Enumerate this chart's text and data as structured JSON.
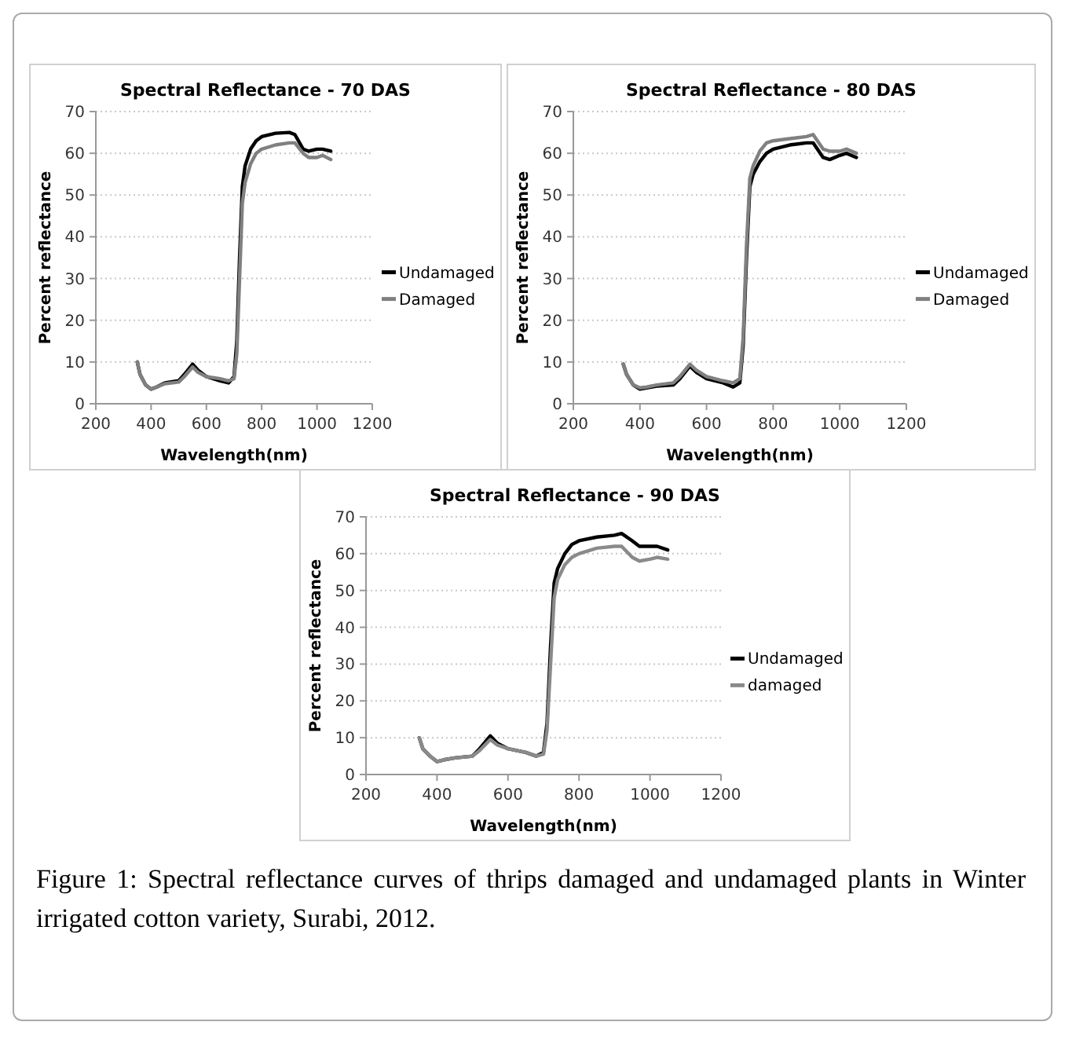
{
  "chart_data": [
    {
      "type": "line",
      "title": "Spectral Reflectance - 70 DAS",
      "xlabel": "Wavelength(nm)",
      "ylabel": "Percent reflectance",
      "x": [
        350,
        360,
        380,
        400,
        420,
        450,
        500,
        520,
        550,
        570,
        600,
        650,
        680,
        700,
        710,
        720,
        730,
        740,
        760,
        780,
        800,
        850,
        900,
        920,
        950,
        970,
        1000,
        1020,
        1050
      ],
      "xlim": [
        200,
        1200
      ],
      "xticks": [
        200,
        400,
        600,
        800,
        1000,
        1200
      ],
      "ylim": [
        0,
        70
      ],
      "yticks": [
        0,
        10,
        20,
        30,
        40,
        50,
        60,
        70
      ],
      "grid": "y",
      "legend": "right",
      "series": [
        {
          "name": "Undamaged",
          "color": "#000000",
          "values": [
            10,
            7,
            4.5,
            3.5,
            4,
            5,
            5.5,
            7,
            9.5,
            8,
            6.5,
            5.5,
            5,
            6.5,
            15,
            35,
            52,
            57,
            61,
            63,
            64,
            64.8,
            65,
            64.5,
            61,
            60.5,
            61,
            61,
            60.5
          ]
        },
        {
          "name": "Damaged",
          "color": "#808080",
          "values": [
            10,
            7,
            4.5,
            3.5,
            4,
            4.8,
            5.2,
            6.5,
            8.8,
            7.5,
            6.5,
            6,
            5.5,
            6,
            12,
            30,
            48,
            53,
            57.5,
            60,
            61,
            62,
            62.5,
            62.5,
            60,
            59,
            59,
            59.5,
            58.5
          ]
        }
      ]
    },
    {
      "type": "line",
      "title": "Spectral Reflectance - 80 DAS",
      "xlabel": "Wavelength(nm)",
      "ylabel": "Percent reflectance",
      "x": [
        350,
        360,
        380,
        400,
        420,
        450,
        500,
        520,
        550,
        570,
        600,
        650,
        680,
        700,
        710,
        720,
        730,
        740,
        760,
        780,
        800,
        850,
        900,
        920,
        950,
        970,
        1000,
        1020,
        1050
      ],
      "xlim": [
        200,
        1200
      ],
      "xticks": [
        200,
        400,
        600,
        800,
        1000,
        1200
      ],
      "ylim": [
        0,
        70
      ],
      "yticks": [
        0,
        10,
        20,
        30,
        40,
        50,
        60,
        70
      ],
      "grid": "y",
      "legend": "right",
      "series": [
        {
          "name": "Undamaged",
          "color": "#000000",
          "values": [
            9.5,
            7,
            4.5,
            3.5,
            3.8,
            4.2,
            4.5,
            6,
            9,
            7.5,
            6,
            5,
            4,
            5,
            14,
            35,
            52,
            55,
            58,
            60,
            61,
            62,
            62.5,
            62.5,
            59,
            58.5,
            59.5,
            60,
            59
          ]
        },
        {
          "name": "Damaged",
          "color": "#808080",
          "values": [
            9.5,
            7,
            4.5,
            3.8,
            4,
            4.5,
            5,
            6.5,
            9.5,
            8,
            6.5,
            5.5,
            5,
            6,
            16,
            38,
            54,
            57,
            60.5,
            62.5,
            63,
            63.5,
            64,
            64.5,
            61,
            60.5,
            60.5,
            61,
            60
          ]
        }
      ]
    },
    {
      "type": "line",
      "title": "Spectral Reflectance - 90 DAS",
      "xlabel": "Wavelength(nm)",
      "ylabel": "Percent reflectance",
      "x": [
        350,
        360,
        380,
        400,
        420,
        450,
        500,
        520,
        550,
        570,
        600,
        650,
        680,
        700,
        710,
        720,
        730,
        740,
        760,
        780,
        800,
        850,
        900,
        920,
        950,
        970,
        1000,
        1020,
        1050
      ],
      "xlim": [
        200,
        1200
      ],
      "xticks": [
        200,
        400,
        600,
        800,
        1000,
        1200
      ],
      "ylim": [
        0,
        70
      ],
      "yticks": [
        0,
        10,
        20,
        30,
        40,
        50,
        60,
        70
      ],
      "grid": "y",
      "legend": "right",
      "annotations": [
        "Figure 1: Spectral reflectance curves of thrips damaged and undamaged plants in Winter irrigated cotton variety, Surabi, 2012."
      ],
      "series": [
        {
          "name": "Undamaged",
          "color": "#000000",
          "values": [
            10,
            7,
            5,
            3.5,
            4,
            4.5,
            5,
            7,
            10.5,
            8.5,
            7,
            6,
            5,
            6,
            14,
            35,
            52,
            56,
            60,
            62.5,
            63.5,
            64.5,
            65,
            65.5,
            63.5,
            62,
            62,
            62,
            61
          ]
        },
        {
          "name": "damaged",
          "color": "#8a8a8a",
          "values": [
            10,
            7,
            5,
            3.5,
            4,
            4.5,
            5,
            6.5,
            9.5,
            8,
            7,
            6,
            5,
            5.5,
            12,
            30,
            48,
            53,
            57,
            59,
            60,
            61.5,
            62,
            62,
            59,
            58,
            58.5,
            59,
            58.5
          ]
        }
      ]
    }
  ]
}
